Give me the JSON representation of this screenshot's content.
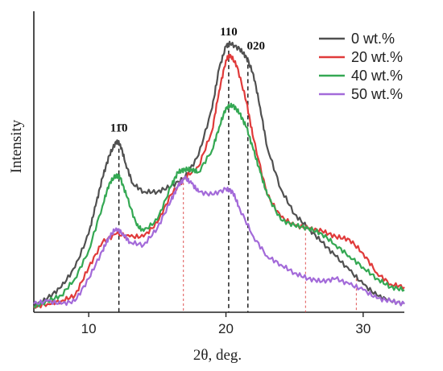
{
  "chart_data": {
    "type": "line",
    "xlabel": "2θ, deg.",
    "ylabel": "Intensity",
    "xlim": [
      6,
      33
    ],
    "ylim": [
      0,
      1
    ],
    "y_ticks_shown": false,
    "x_ticks": [
      10,
      20,
      30
    ],
    "grid": false,
    "legend_position": "top-right",
    "series": [
      {
        "name": "0 wt.%",
        "color": "#505050",
        "x": [
          6,
          7,
          8,
          9,
          10,
          10.5,
          11,
          11.5,
          12,
          12.3,
          12.7,
          13.2,
          14,
          15,
          16,
          17,
          18,
          19,
          19.5,
          20,
          20.3,
          21,
          21.5,
          22,
          22.5,
          23,
          24,
          25,
          26,
          27,
          28,
          29,
          30,
          31,
          32,
          33
        ],
        "y": [
          0.02,
          0.05,
          0.09,
          0.16,
          0.28,
          0.38,
          0.48,
          0.56,
          0.61,
          0.6,
          0.53,
          0.46,
          0.43,
          0.43,
          0.45,
          0.48,
          0.56,
          0.73,
          0.87,
          0.95,
          0.96,
          0.94,
          0.91,
          0.85,
          0.73,
          0.59,
          0.44,
          0.35,
          0.3,
          0.25,
          0.2,
          0.15,
          0.1,
          0.06,
          0.04,
          0.03
        ]
      },
      {
        "name": "20 wt.%",
        "color": "#e03a3a",
        "x": [
          6,
          7,
          8,
          9,
          10,
          11,
          12,
          13,
          14,
          15,
          16,
          17,
          18,
          19,
          19.5,
          20,
          20.3,
          20.8,
          21.5,
          22,
          23,
          24,
          25,
          26,
          27,
          28,
          29,
          30,
          31,
          32,
          33
        ],
        "y": [
          0.02,
          0.03,
          0.04,
          0.06,
          0.16,
          0.25,
          0.28,
          0.27,
          0.27,
          0.32,
          0.42,
          0.48,
          0.52,
          0.65,
          0.79,
          0.9,
          0.92,
          0.88,
          0.75,
          0.62,
          0.42,
          0.34,
          0.31,
          0.3,
          0.29,
          0.27,
          0.26,
          0.21,
          0.14,
          0.1,
          0.09
        ]
      },
      {
        "name": "40 wt.%",
        "color": "#34a853",
        "x": [
          6,
          7,
          8,
          9,
          10,
          11,
          11.5,
          12,
          12.3,
          12.8,
          13.5,
          14,
          15,
          16,
          16.5,
          17,
          17.5,
          18,
          19,
          19.5,
          20,
          20.5,
          21,
          21.5,
          22,
          22.5,
          23,
          24,
          25,
          26,
          27,
          28,
          29,
          30,
          31,
          32,
          33
        ],
        "y": [
          0.02,
          0.04,
          0.06,
          0.12,
          0.22,
          0.38,
          0.46,
          0.49,
          0.48,
          0.41,
          0.31,
          0.29,
          0.33,
          0.45,
          0.5,
          0.51,
          0.51,
          0.5,
          0.58,
          0.66,
          0.73,
          0.74,
          0.71,
          0.66,
          0.58,
          0.5,
          0.42,
          0.33,
          0.31,
          0.3,
          0.28,
          0.24,
          0.2,
          0.16,
          0.12,
          0.09,
          0.08
        ]
      },
      {
        "name": "50 wt.%",
        "color": "#a36ad9",
        "x": [
          6,
          7,
          8,
          9,
          10,
          11,
          11.5,
          12,
          12.5,
          13,
          14,
          15,
          16,
          16.5,
          17,
          17.5,
          18,
          19,
          20,
          20.5,
          21,
          22,
          23,
          24,
          25,
          26,
          27,
          28,
          29,
          30,
          31,
          32,
          33
        ],
        "y": [
          0.03,
          0.04,
          0.03,
          0.04,
          0.12,
          0.22,
          0.27,
          0.3,
          0.28,
          0.25,
          0.24,
          0.3,
          0.4,
          0.45,
          0.48,
          0.46,
          0.43,
          0.42,
          0.44,
          0.43,
          0.37,
          0.27,
          0.2,
          0.17,
          0.14,
          0.12,
          0.11,
          0.12,
          0.1,
          0.08,
          0.05,
          0.04,
          0.03
        ]
      }
    ],
    "peak_labels": [
      {
        "text": "11̄0",
        "x": 12.2,
        "y": 0.61
      },
      {
        "text": "110",
        "x": 20.2,
        "y": 0.96
      },
      {
        "text": "020",
        "x": 21.6,
        "y": 0.91
      }
    ],
    "reference_lines": [
      {
        "x": 12.2,
        "y_top": 0.61,
        "color": "#111111"
      },
      {
        "x": 20.2,
        "y_top": 0.96,
        "color": "#111111"
      },
      {
        "x": 21.6,
        "y_top": 0.91,
        "color": "#111111"
      },
      {
        "x": 16.9,
        "y_top": 0.48,
        "color": "#e05555"
      },
      {
        "x": 25.8,
        "y_top": 0.3,
        "color": "#e05555"
      },
      {
        "x": 29.5,
        "y_top": 0.12,
        "color": "#e05555"
      }
    ]
  }
}
